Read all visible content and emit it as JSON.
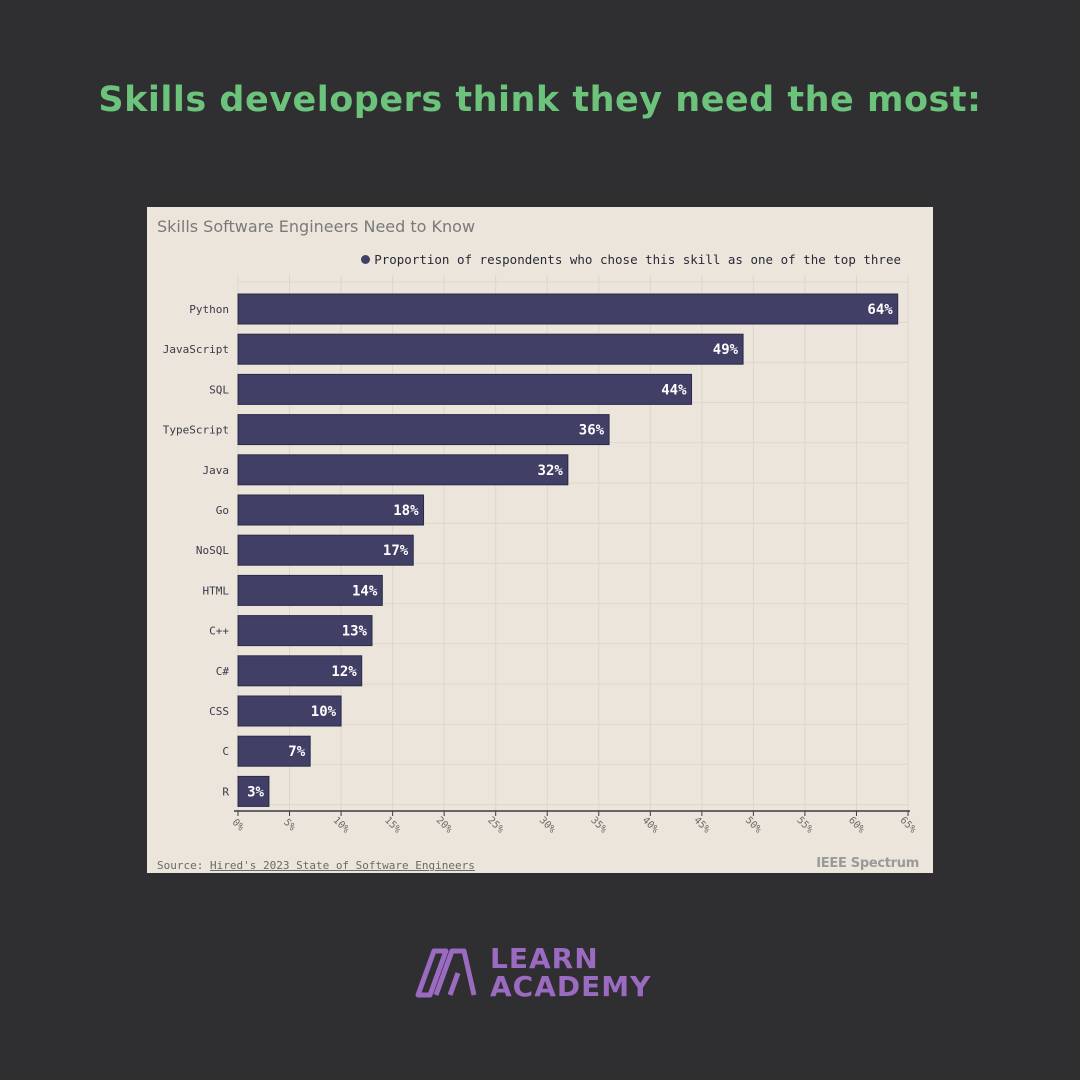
{
  "headline": "Skills developers think they need the most:",
  "colors": {
    "background": "#2f2e30",
    "headline": "#6cc37b",
    "card": "#ebe5db",
    "bar": "#413f65",
    "grid": "#ddd6cb",
    "logo": "#9b6bc1"
  },
  "chart_data": {
    "type": "bar",
    "orientation": "horizontal",
    "title": "Skills Software Engineers Need to Know",
    "legend": {
      "label": "Proportion of respondents who chose this skill as one of the top three",
      "placement": "top-right"
    },
    "categories": [
      "Python",
      "JavaScript",
      "SQL",
      "TypeScript",
      "Java",
      "Go",
      "NoSQL",
      "HTML",
      "C++",
      "C#",
      "CSS",
      "C",
      "R"
    ],
    "values": [
      64,
      49,
      44,
      36,
      32,
      18,
      17,
      14,
      13,
      12,
      10,
      7,
      3
    ],
    "value_labels": [
      "64%",
      "49%",
      "44%",
      "36%",
      "32%",
      "18%",
      "17%",
      "14%",
      "13%",
      "12%",
      "10%",
      "7%",
      "3%"
    ],
    "xticks": [
      "0%",
      "5%",
      "10%",
      "15%",
      "20%",
      "25%",
      "30%",
      "35%",
      "40%",
      "45%",
      "50%",
      "55%",
      "60%",
      "65%"
    ],
    "xlim": [
      0,
      65
    ],
    "grid": true,
    "source_prefix": "Source:",
    "source_link": "Hired's 2023 State of Software Engineers",
    "brand": "IEEE Spectrum"
  },
  "logo": {
    "line1": "LEARN",
    "line2": "ACADEMY"
  }
}
